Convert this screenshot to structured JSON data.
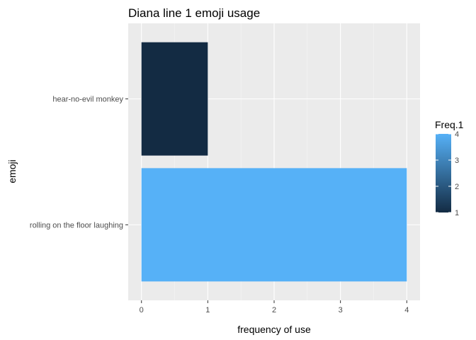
{
  "chart_data": {
    "type": "bar",
    "orientation": "horizontal",
    "title": "Diana line 1 emoji usage",
    "xlabel": "frequency of use",
    "ylabel": "emoji",
    "categories": [
      "hear-no-evil monkey",
      "rolling on the floor laughing"
    ],
    "values": [
      1,
      4
    ],
    "xlim": [
      -0.2,
      4.2
    ],
    "xticks": [
      0,
      1,
      2,
      3,
      4
    ],
    "grid": true,
    "legend": {
      "title": "Freq.1",
      "type": "colorbar",
      "placement": "right",
      "min": 1,
      "max": 4,
      "ticks": [
        1,
        2,
        3,
        4
      ],
      "low_color": "#132b43",
      "high_color": "#56b1f7"
    }
  },
  "colors": {
    "panel_background": "#ebebeb",
    "grid_major": "#ffffff",
    "grid_minor": "#f5f5f5"
  }
}
